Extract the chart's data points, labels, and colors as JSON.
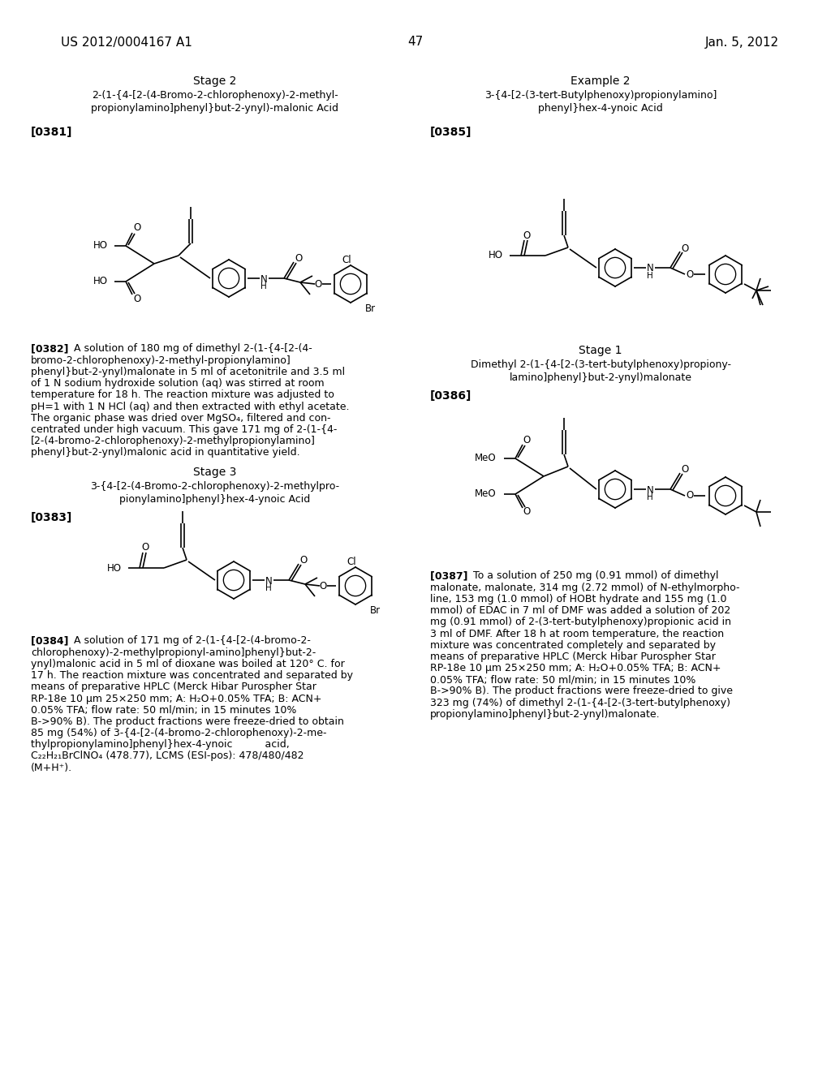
{
  "background_color": "#ffffff",
  "header_left": "US 2012/0004167 A1",
  "header_right": "Jan. 5, 2012",
  "page_number": "47",
  "stage2_title": "Stage 2",
  "stage2_line1": "2-(1-{4-[2-(4-Bromo-2-chlorophenoxy)-2-methyl-",
  "stage2_line2": "propionylamino]phenyl}but-2-ynyl)-malonic Acid",
  "ref0381": "[0381]",
  "ref0382_lines": [
    "[0382]   A solution of 180 mg of dimethyl 2-(1-{4-[2-(4-",
    "bromo-2-chlorophenoxy)-2-methyl-propionylamino]",
    "phenyl}but-2-ynyl)malonate in 5 ml of acetonitrile and 3.5 ml",
    "of 1 N sodium hydroxide solution (aq) was stirred at room",
    "temperature for 18 h. The reaction mixture was adjusted to",
    "pH=1 with 1 N HCl (aq) and then extracted with ethyl acetate.",
    "The organic phase was dried over MgSO₄, filtered and con-",
    "centrated under high vacuum. This gave 171 mg of 2-(1-{4-",
    "[2-(4-bromo-2-chlorophenoxy)-2-methylpropionylamino]",
    "phenyl}but-2-ynyl)malonic acid in quantitative yield."
  ],
  "stage3_title": "Stage 3",
  "stage3_line1": "3-{4-[2-(4-Bromo-2-chlorophenoxy)-2-methylpro-",
  "stage3_line2": "pionylamino]phenyl}hex-4-ynoic Acid",
  "ref0383": "[0383]",
  "ref0384_lines": [
    "[0384]   A solution of 171 mg of 2-(1-{4-[2-(4-bromo-2-",
    "chlorophenoxy)-2-methylpropionyl-amino]phenyl}but-2-",
    "ynyl)malonic acid in 5 ml of dioxane was boiled at 120° C. for",
    "17 h. The reaction mixture was concentrated and separated by",
    "means of preparative HPLC (Merck Hibar Purospher Star",
    "RP-18e 10 μm 25×250 mm; A: H₂O+0.05% TFA; B: ACN+",
    "0.05% TFA; flow rate: 50 ml/min; in 15 minutes 10%",
    "B->90% B). The product fractions were freeze-dried to obtain",
    "85 mg (54%) of 3-{4-[2-(4-bromo-2-chlorophenoxy)-2-me-",
    "thylpropionylamino]phenyl}hex-4-ynoic          acid,",
    "C₂₂H₂₁BrClNO₄ (478.77), LCMS (ESI-pos): 478/480/482",
    "(M+H⁺)."
  ],
  "example2_title": "Example 2",
  "example2_line1": "3-{4-[2-(3-tert-Butylphenoxy)propionylamino]",
  "example2_line2": "phenyl}hex-4-ynoic Acid",
  "ref0385": "[0385]",
  "stage1r_title": "Stage 1",
  "stage1r_line1": "Dimethyl 2-(1-{4-[2-(3-tert-butylphenoxy)propiony-",
  "stage1r_line2": "lamino]phenyl}but-2-ynyl)malonate",
  "ref0386": "[0386]",
  "ref0387_lines": [
    "[0387]   To a solution of 250 mg (0.91 mmol) of dimethyl",
    "malonate, malonate, 314 mg (2.72 mmol) of N-ethylmorpho-",
    "line, 153 mg (1.0 mmol) of HOBt hydrate and 155 mg (1.0",
    "mmol) of EDAC in 7 ml of DMF was added a solution of 202",
    "mg (0.91 mmol) of 2-(3-tert-butylphenoxy)propionic acid in",
    "3 ml of DMF. After 18 h at room temperature, the reaction",
    "mixture was concentrated completely and separated by",
    "means of preparative HPLC (Merck Hibar Purospher Star",
    "RP-18e 10 μm 25×250 mm; A: H₂O+0.05% TFA; B: ACN+",
    "0.05% TFA; flow rate: 50 ml/min; in 15 minutes 10%",
    "B->90% B). The product fractions were freeze-dried to give",
    "323 mg (74%) of dimethyl 2-(1-{4-[2-(3-tert-butylphenoxy)",
    "propionylamino]phenyl}but-2-ynyl)malonate."
  ]
}
